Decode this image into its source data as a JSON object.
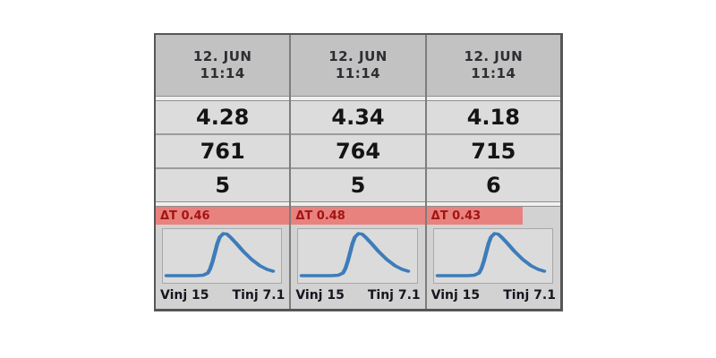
{
  "window": {
    "background": "#ffffff"
  },
  "table": {
    "columns": [
      {
        "header": {
          "date": "12. JUN",
          "time": "11:14"
        },
        "rows": [
          "4.28",
          "761",
          "5"
        ],
        "chart": {
          "delta_label": "ΔT 0.46",
          "banner_width_pct": 100,
          "vinj_label": "Vinj 15",
          "tinj_label": "Tinj 7.1"
        }
      },
      {
        "header": {
          "date": "12. JUN",
          "time": "11:14"
        },
        "rows": [
          "4.34",
          "764",
          "5"
        ],
        "chart": {
          "delta_label": "ΔT 0.48",
          "banner_width_pct": 100,
          "vinj_label": "Vinj 15",
          "tinj_label": "Tinj 7.1"
        }
      },
      {
        "header": {
          "date": "12. JUN",
          "time": "11:14"
        },
        "rows": [
          "4.18",
          "715",
          "6"
        ],
        "chart": {
          "delta_label": "ΔT 0.43",
          "banner_width_pct": 72,
          "vinj_label": "Vinj 15",
          "tinj_label": "Tinj 7.1"
        }
      }
    ],
    "colors": {
      "banner_bg": "#e8827e",
      "banner_text": "#a31414",
      "curve": "#3e7cba"
    },
    "sparkline": {
      "color": "#3e7cba",
      "points": [
        [
          3,
          52
        ],
        [
          28,
          52
        ],
        [
          34,
          51.5
        ],
        [
          38,
          49
        ],
        [
          40,
          44
        ],
        [
          42,
          36
        ],
        [
          44,
          26
        ],
        [
          46,
          16
        ],
        [
          48,
          9
        ],
        [
          51,
          5
        ],
        [
          54,
          5.5
        ],
        [
          57,
          9
        ],
        [
          62,
          16
        ],
        [
          68,
          25
        ],
        [
          75,
          34
        ],
        [
          82,
          41
        ],
        [
          88,
          45
        ],
        [
          93,
          47
        ]
      ]
    }
  }
}
